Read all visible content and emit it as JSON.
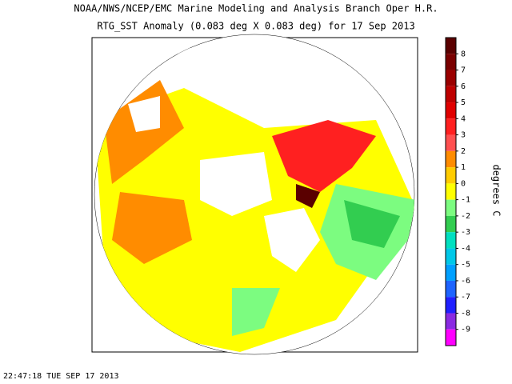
{
  "header": {
    "title": "NOAA/NWS/NCEP/EMC Marine Modeling and Analysis Branch Oper H.R.",
    "subtitle": "RTG_SST Anomaly (0.083 deg X 0.083 deg) for 17 Sep 2013"
  },
  "colorbar": {
    "label": "degrees C",
    "ticks": [
      8,
      7,
      6,
      5,
      4,
      3,
      2,
      1,
      0,
      -1,
      -2,
      -3,
      -4,
      -5,
      -6,
      -7,
      -8,
      -9
    ],
    "colors": [
      "#5a0000",
      "#7a0000",
      "#9a0000",
      "#be0000",
      "#e00000",
      "#ff2020",
      "#ff5050",
      "#ff8c00",
      "#ffcc00",
      "#ffff00",
      "#7cfc80",
      "#32cd50",
      "#00e0c0",
      "#00c8e8",
      "#00a0ff",
      "#1e64ff",
      "#2020ff",
      "#8a2be2",
      "#ff00ff"
    ]
  },
  "footer": {
    "timestamp": "22:47:18  TUE SEP 17 2013"
  }
}
